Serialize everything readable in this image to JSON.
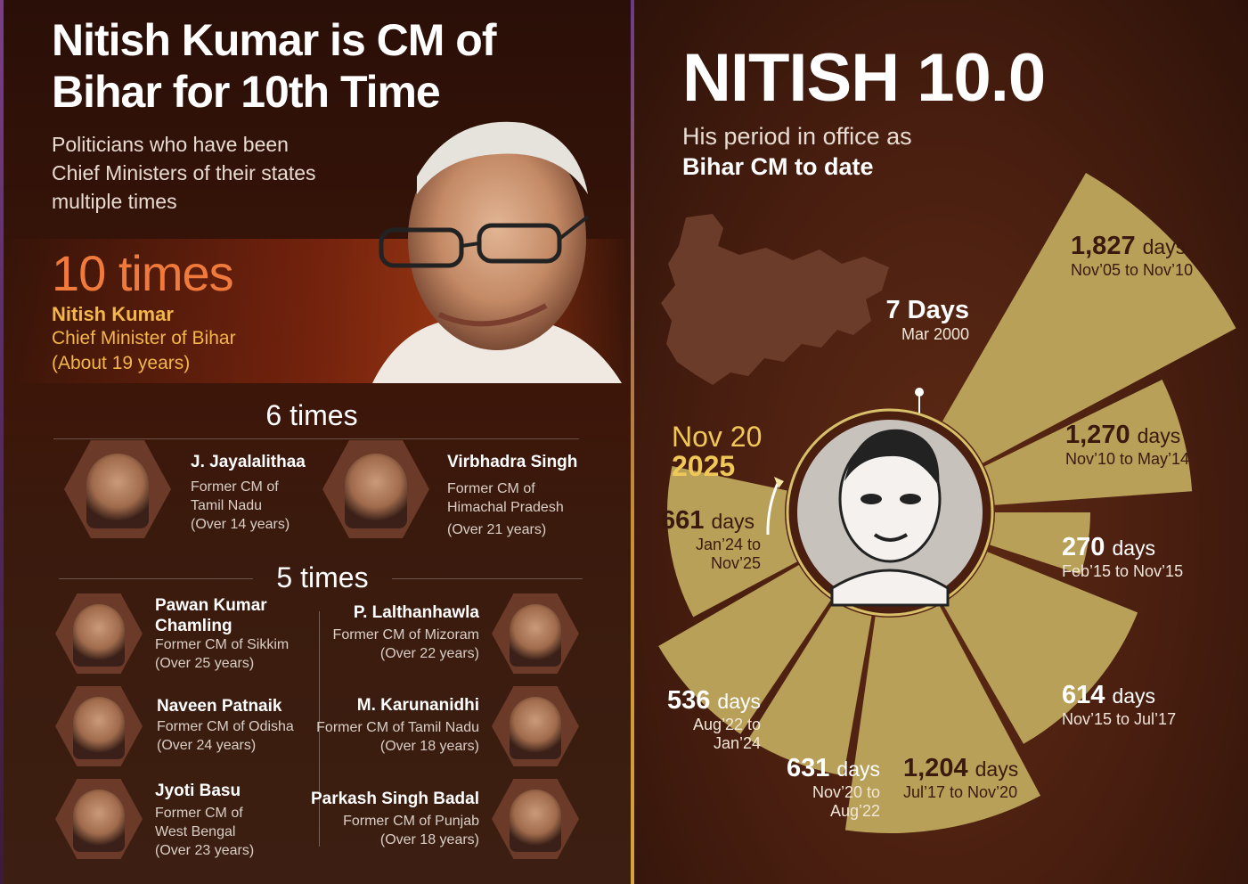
{
  "left": {
    "title_line1": "Nitish Kumar is CM of",
    "title_line2": "Bihar for 10th Time",
    "subtitle_line1": "Politicians who have been",
    "subtitle_line2": "Chief Ministers of their states",
    "subtitle_line3": "multiple times",
    "hero": {
      "count": "10 times",
      "name": "Nitish Kumar",
      "role": "Chief Minister of Bihar",
      "years": "(About 19 years)"
    },
    "six": {
      "heading": "6 times",
      "people": [
        {
          "name": "J. Jayalalithaa",
          "role1": "Former CM of",
          "role2": "Tamil Nadu",
          "years": "(Over 14 years)"
        },
        {
          "name": "Virbhadra Singh",
          "role1": "Former CM of",
          "role2": "Himachal Pradesh",
          "years": "(Over 21 years)"
        }
      ]
    },
    "five": {
      "heading": "5 times",
      "left_col": [
        {
          "name1": "Pawan Kumar",
          "name2": "Chamling",
          "role1": "Former CM of Sikkim",
          "years": "(Over 25 years)"
        },
        {
          "name1": "Naveen Patnaik",
          "role1": "Former CM of Odisha",
          "years": "(Over 24 years)"
        },
        {
          "name1": "Jyoti Basu",
          "role1": "Former CM of",
          "role2": "West Bengal",
          "years": "(Over 23 years)"
        }
      ],
      "right_col": [
        {
          "name1": "P. Lalthanhawla",
          "role1": "Former CM of Mizoram",
          "years": "(Over 22 years)"
        },
        {
          "name1": "M. Karunanidhi",
          "role1": "Former CM of Tamil Nadu",
          "years": "(Over 18 years)"
        },
        {
          "name1": "Parkash Singh Badal",
          "role1": "Former CM of Punjab",
          "years": "(Over 18 years)"
        }
      ]
    }
  },
  "right": {
    "title": "NITISH 10.0",
    "sub1": "His period in office as",
    "sub2": "Bihar CM to date",
    "start_month": "Nov 20",
    "start_year": "2025",
    "unit": "days",
    "terms": [
      {
        "value": "7",
        "unit": "Days",
        "range": "Mar 2000"
      },
      {
        "value": "1,827",
        "range": "Nov’05 to Nov’10"
      },
      {
        "value": "1,270",
        "range": "Nov’10 to May’14"
      },
      {
        "value": "270",
        "range": "Feb’15 to Nov’15"
      },
      {
        "value": "614",
        "range": "Nov’15 to Jul’17"
      },
      {
        "value": "1,204",
        "range": "Jul’17 to Nov’20"
      },
      {
        "value": "631",
        "range1": "Nov’20 to",
        "range2": "Aug’22"
      },
      {
        "value": "536",
        "range1": "Aug’22 to",
        "range2": "Jan’24"
      },
      {
        "value": "661",
        "range1": "Jan’24 to",
        "range2": "Nov’25"
      }
    ]
  },
  "colors": {
    "gold": "#b8a058",
    "orange": "#f07a3c",
    "yellow": "#f3b64a",
    "maroon": "#3a1a0d"
  }
}
